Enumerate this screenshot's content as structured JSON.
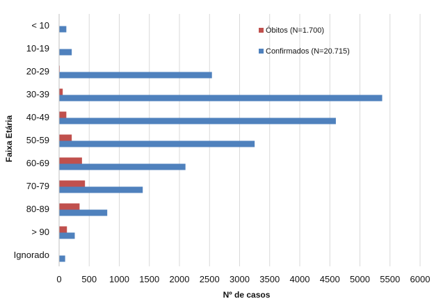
{
  "chart_data": {
    "type": "bar",
    "orientation": "horizontal",
    "title": "",
    "xlabel": "Nº de casos",
    "ylabel": "Faixa Etária",
    "xlim": [
      0,
      6000
    ],
    "xticks": [
      0,
      500,
      1000,
      1500,
      2000,
      2500,
      3000,
      3500,
      4000,
      4500,
      5000,
      5500,
      6000
    ],
    "grid": true,
    "legend_position": "top-right",
    "categories": [
      "< 10",
      "10-19",
      "20-29",
      "30-39",
      "40-49",
      "50-59",
      "60-69",
      "70-79",
      "80-89",
      "> 90",
      "Ignorado"
    ],
    "series": [
      {
        "name": "Óbitos (N=1.700)",
        "color": "#c0504d",
        "values": [
          0,
          0,
          10,
          60,
          120,
          210,
          380,
          430,
          340,
          130,
          0
        ]
      },
      {
        "name": "Confirmados (N=20.715)",
        "color": "#4f81bd",
        "values": [
          120,
          210,
          2540,
          5370,
          4600,
          3250,
          2100,
          1390,
          800,
          260,
          100
        ]
      }
    ]
  }
}
